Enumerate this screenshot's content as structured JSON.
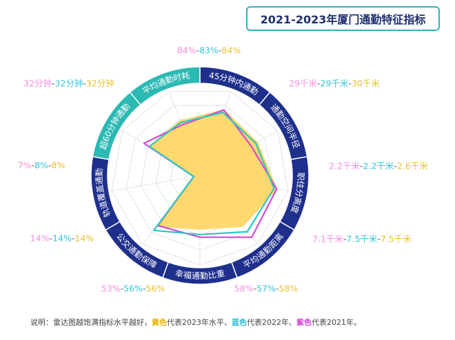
{
  "title": "2021-2023年厦门通勤特征指标",
  "footnote": {
    "prefix": "说明：雷达图越饱满指标水平越好，",
    "yellow": "黄色",
    "mid1": "代表2023年水平、",
    "blue": "蓝色",
    "mid2": "代表2022年、",
    "purple": "紫色",
    "suffix": "代表2021年。"
  },
  "colors": {
    "ring_navy": "#1e2f8c",
    "ring_teal": "#2bb9b3",
    "series_2023": "#ffd667",
    "series_2022": "#2ec6c2",
    "series_2021": "#d649d4",
    "label_2021": "#ef8fe0",
    "label_2022": "#34c3d8",
    "label_2023": "#e8c02c"
  },
  "chart_data": {
    "type": "radar",
    "axes": [
      "45分钟内通勤",
      "通勤空间半径",
      "职住分离度",
      "平均通勤距离",
      "幸福通勤比重",
      "公交通勤保障",
      "轨道覆盖通勤",
      "超60分钟通勤",
      "平均通勤时耗"
    ],
    "axis_values": [
      {
        "v2021": "84%",
        "v2022": "83%",
        "v2023": "84%"
      },
      {
        "v2021": "29千米",
        "v2022": "29千米",
        "v2023": "30千米"
      },
      {
        "v2021": "2.2千米",
        "v2022": "2.2千米",
        "v2023": "2.6千米"
      },
      {
        "v2021": "7.1千米",
        "v2022": "7.5千米",
        "v2023": "7.5千米"
      },
      {
        "v2021": "58%",
        "v2022": "57%",
        "v2023": "58%"
      },
      {
        "v2021": "53%",
        "v2022": "56%",
        "v2023": "56%"
      },
      {
        "v2021": "14%",
        "v2022": "14%",
        "v2023": "14%"
      },
      {
        "v2021": "7%",
        "v2022": "8%",
        "v2023": "8%"
      },
      {
        "v2021": "32分钟",
        "v2022": "32分钟",
        "v2023": "32分钟"
      }
    ],
    "series": [
      {
        "name": "2023年",
        "values": [
          0.78,
          0.74,
          0.87,
          0.74,
          0.6,
          0.74,
          0.07,
          0.65,
          0.65
        ]
      },
      {
        "name": "2022年",
        "values": [
          0.75,
          0.72,
          0.84,
          0.82,
          0.66,
          0.8,
          0.07,
          0.65,
          0.63
        ]
      },
      {
        "name": "2021年",
        "values": [
          0.78,
          0.66,
          0.87,
          0.9,
          0.69,
          0.73,
          0.07,
          0.72,
          0.6
        ]
      }
    ],
    "grid_levels": 6,
    "separator": "-"
  }
}
